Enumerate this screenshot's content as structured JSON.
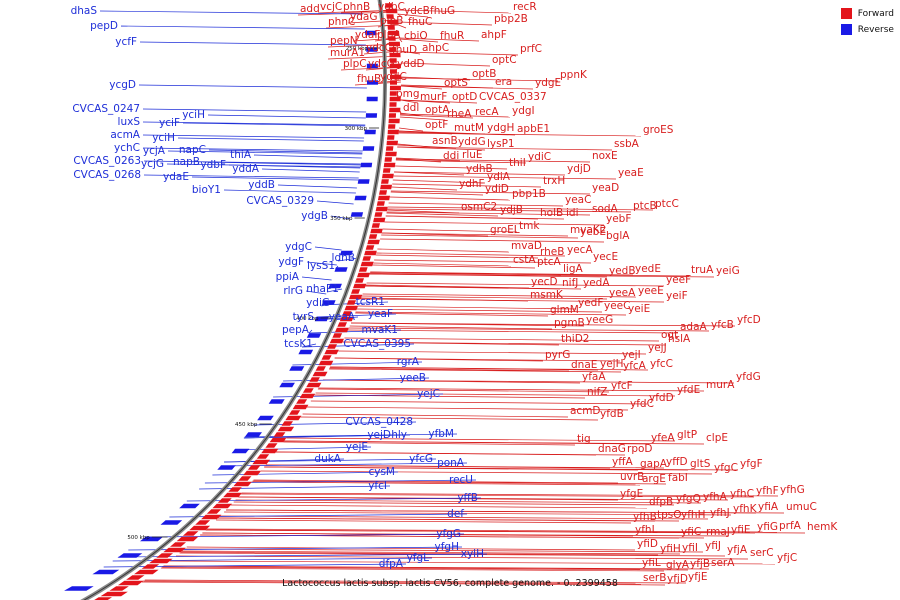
{
  "colors": {
    "forward": "#e3141b",
    "reverse": "#1a1ae6",
    "backbone": "#8a8a8a",
    "label_forward": "#d81e1e",
    "label_reverse": "#1e2ed8"
  },
  "legend": {
    "forward_label": "Forward",
    "reverse_label": "Reverse"
  },
  "caption": "Lactococcus lactis subsp. lactis CV56, complete genome. - 0..2399458",
  "scale_ticks": [
    "250 kbp",
    "300 kbp",
    "350 kbp",
    "400 kbp",
    "450 kbp",
    "500 kbp"
  ],
  "forward_labels": [
    [
      "add",
      300,
      12
    ],
    [
      "vcjC",
      320,
      10
    ],
    [
      "phnB",
      343,
      10
    ],
    [
      "ydbC",
      378,
      10
    ],
    [
      "recR",
      513,
      10
    ],
    [
      "ydcB",
      404,
      14
    ],
    [
      "fhuG",
      430,
      14
    ],
    [
      "pbp2B",
      494,
      22
    ],
    [
      "phnC",
      328,
      25
    ],
    [
      "ydaG",
      350,
      20
    ],
    [
      "plpB",
      380,
      24
    ],
    [
      "fhuC",
      408,
      25
    ],
    [
      "fhuR",
      440,
      39
    ],
    [
      "ahpF",
      481,
      38
    ],
    [
      "pepN",
      330,
      44
    ],
    [
      "ydaF",
      355,
      38
    ],
    [
      "plpA",
      377,
      38
    ],
    [
      "cbiO",
      404,
      39
    ],
    [
      "prfC",
      520,
      52
    ],
    [
      "murA1",
      330,
      56
    ],
    [
      "ydcC",
      366,
      51
    ],
    [
      "fhuD",
      392,
      53
    ],
    [
      "ahpC",
      422,
      51
    ],
    [
      "optC",
      492,
      63
    ],
    [
      "ppnK",
      560,
      78
    ],
    [
      "plpC",
      343,
      67
    ],
    [
      "ydcG",
      368,
      67
    ],
    [
      "yddD",
      397,
      67
    ],
    [
      "fhuB",
      357,
      82
    ],
    [
      "yddC",
      380,
      80
    ],
    [
      "optS",
      444,
      86
    ],
    [
      "optB",
      472,
      77
    ],
    [
      "era",
      495,
      85
    ],
    [
      "ydgE",
      535,
      86
    ],
    [
      "pmg",
      396,
      97
    ],
    [
      "murF",
      420,
      100
    ],
    [
      "optD",
      452,
      100
    ],
    [
      "CVCAS_0337",
      479,
      100
    ],
    [
      "ddl",
      403,
      111
    ],
    [
      "optA",
      425,
      113
    ],
    [
      "rheA",
      447,
      117
    ],
    [
      "recA",
      475,
      115
    ],
    [
      "ydgI",
      512,
      114
    ],
    [
      "optF",
      425,
      128
    ],
    [
      "mutM",
      454,
      131
    ],
    [
      "ydgH",
      487,
      131
    ],
    [
      "apbE1",
      517,
      132
    ],
    [
      "asnB",
      432,
      144
    ],
    [
      "yddG",
      458,
      145
    ],
    [
      "groES",
      643,
      133
    ],
    [
      "ssbA",
      614,
      147
    ],
    [
      "ddi",
      443,
      159
    ],
    [
      "rluE",
      462,
      158
    ],
    [
      "lysP1",
      487,
      147
    ],
    [
      "noxE",
      592,
      159
    ],
    [
      "ydhB",
      466,
      172
    ],
    [
      "thiI",
      509,
      166
    ],
    [
      "ydiC",
      528,
      160
    ],
    [
      "ydjD",
      567,
      172
    ],
    [
      "yeaE",
      618,
      176
    ],
    [
      "ydhF",
      459,
      187
    ],
    [
      "ydiA",
      487,
      180
    ],
    [
      "trxH",
      543,
      184
    ],
    [
      "ydiD",
      485,
      192
    ],
    [
      "pbp1B",
      512,
      197
    ],
    [
      "yeaD",
      592,
      191
    ],
    [
      "osmC2",
      461,
      210
    ],
    [
      "ydjB",
      500,
      213
    ],
    [
      "holB",
      540,
      216
    ],
    [
      "idi",
      566,
      216
    ],
    [
      "sodA",
      592,
      212
    ],
    [
      "ptcB",
      633,
      209
    ],
    [
      "ptcC",
      655,
      207
    ],
    [
      "yeaC",
      565,
      203
    ],
    [
      "tmk",
      519,
      229
    ],
    [
      "groEL",
      490,
      233
    ],
    [
      "mvaK2",
      570,
      233
    ],
    [
      "yebF",
      606,
      222
    ],
    [
      "yebE",
      580,
      235
    ],
    [
      "bglA",
      606,
      239
    ],
    [
      "mvaD",
      511,
      249
    ],
    [
      "rheB",
      540,
      255
    ],
    [
      "yecA",
      567,
      253
    ],
    [
      "cstA",
      513,
      263
    ],
    [
      "ptcA",
      537,
      265
    ],
    [
      "ligA",
      563,
      272
    ],
    [
      "yecE",
      593,
      260
    ],
    [
      "yecD",
      531,
      285
    ],
    [
      "nifJ",
      562,
      286
    ],
    [
      "yedA",
      583,
      286
    ],
    [
      "yedB",
      609,
      274
    ],
    [
      "yedE",
      635,
      272
    ],
    [
      "msmK",
      530,
      298
    ],
    [
      "yeeA",
      609,
      296
    ],
    [
      "yeeE",
      638,
      294
    ],
    [
      "yeeF",
      666,
      283
    ],
    [
      "truA",
      691,
      273
    ],
    [
      "yeiG",
      716,
      274
    ],
    [
      "glmM",
      550,
      313
    ],
    [
      "yedF",
      578,
      306
    ],
    [
      "yeeC",
      604,
      309
    ],
    [
      "yeiF",
      666,
      299
    ],
    [
      "yeeG",
      586,
      323
    ],
    [
      "yeiE",
      628,
      312
    ],
    [
      "pgmB",
      554,
      326
    ],
    [
      "thiD2",
      561,
      342
    ],
    [
      "adaA",
      680,
      330
    ],
    [
      "yfcB",
      711,
      328
    ],
    [
      "yfcD",
      737,
      323
    ],
    [
      "ogt",
      661,
      338
    ],
    [
      "yejI",
      622,
      358
    ],
    [
      "yejJ",
      648,
      351
    ],
    [
      "hslA",
      668,
      342
    ],
    [
      "dnaE",
      571,
      368
    ],
    [
      "yejH",
      600,
      367
    ],
    [
      "yfcA",
      623,
      369
    ],
    [
      "yfcC",
      650,
      367
    ],
    [
      "pyrG",
      545,
      358
    ],
    [
      "yfaA",
      582,
      380
    ],
    [
      "yfcF",
      611,
      389
    ],
    [
      "nifZ",
      587,
      395
    ],
    [
      "yfdD",
      649,
      401
    ],
    [
      "yfdE",
      677,
      393
    ],
    [
      "murA",
      706,
      388
    ],
    [
      "yfdG",
      736,
      380
    ],
    [
      "acmD",
      570,
      414
    ],
    [
      "yfdB",
      600,
      417
    ],
    [
      "yfdC",
      630,
      407
    ],
    [
      "tig",
      577,
      442
    ],
    [
      "yfeA",
      651,
      441
    ],
    [
      "gltP",
      677,
      438
    ],
    [
      "clpE",
      706,
      441
    ],
    [
      "dnaG",
      598,
      452
    ],
    [
      "rpoD",
      627,
      452
    ],
    [
      "yffA",
      612,
      465
    ],
    [
      "gapA",
      640,
      467
    ],
    [
      "yffD",
      666,
      465
    ],
    [
      "gltS",
      690,
      467
    ],
    [
      "yfgC",
      714,
      471
    ],
    [
      "yfgF",
      740,
      467
    ],
    [
      "uvrB",
      620,
      480
    ],
    [
      "argE",
      642,
      482
    ],
    [
      "fabI",
      668,
      481
    ],
    [
      "yfgE",
      620,
      497
    ],
    [
      "dfpB",
      649,
      505
    ],
    [
      "yfgQ",
      676,
      502
    ],
    [
      "yfhA",
      703,
      500
    ],
    [
      "yfhC",
      730,
      497
    ],
    [
      "yfhF",
      756,
      494
    ],
    [
      "yfhG",
      780,
      493
    ],
    [
      "yfhB",
      633,
      520
    ],
    [
      "tpsO",
      657,
      518
    ],
    [
      "yfhH",
      681,
      518
    ],
    [
      "yfhJ",
      710,
      516
    ],
    [
      "yfhK",
      733,
      512
    ],
    [
      "yfiA",
      758,
      510
    ],
    [
      "umuC",
      786,
      510
    ],
    [
      "yfhL",
      635,
      533
    ],
    [
      "yfiC",
      681,
      535
    ],
    [
      "rmaJ",
      706,
      535
    ],
    [
      "yfiE",
      731,
      533
    ],
    [
      "yfiG",
      757,
      530
    ],
    [
      "prfA",
      779,
      529
    ],
    [
      "hemK",
      807,
      530
    ],
    [
      "yfiD",
      637,
      547
    ],
    [
      "yfiH",
      660,
      552
    ],
    [
      "yfiI",
      682,
      551
    ],
    [
      "yfiJ",
      705,
      549
    ],
    [
      "yfjA",
      727,
      553
    ],
    [
      "serC",
      750,
      556
    ],
    [
      "yfiL",
      642,
      566
    ],
    [
      "glyA",
      666,
      568
    ],
    [
      "yfjB",
      690,
      567
    ],
    [
      "serA",
      711,
      566
    ],
    [
      "yfjC",
      777,
      561
    ],
    [
      "serB",
      643,
      581
    ],
    [
      "yfjD",
      667,
      582
    ],
    [
      "yfjE",
      688,
      580
    ]
  ],
  "reverse_labels": [
    [
      "dhaS",
      97,
      14
    ],
    [
      "pepD",
      118,
      29
    ],
    [
      "ycfF",
      137,
      45
    ],
    [
      "ycgD",
      136,
      88
    ],
    [
      "CVCAS_0247",
      140,
      112
    ],
    [
      "luxS",
      140,
      125
    ],
    [
      "yciF",
      180,
      126
    ],
    [
      "yciH",
      205,
      118
    ],
    [
      "acmA",
      140,
      138
    ],
    [
      "yciH",
      175,
      141
    ],
    [
      "ychC",
      140,
      151
    ],
    [
      "ycjA",
      165,
      154
    ],
    [
      "napC",
      206,
      153
    ],
    [
      "CVCAS_0263",
      141,
      164
    ],
    [
      "ycjG",
      164,
      167
    ],
    [
      "napB",
      200,
      165
    ],
    [
      "ydbF",
      226,
      168
    ],
    [
      "thiA",
      251,
      158
    ],
    [
      "CVCAS_0268",
      141,
      178
    ],
    [
      "ydaE",
      189,
      180
    ],
    [
      "yddA",
      259,
      172
    ],
    [
      "bioY1",
      221,
      193
    ],
    [
      "yddB",
      275,
      188
    ],
    [
      "CVCAS_0329",
      314,
      204
    ],
    [
      "ydgB",
      328,
      219
    ],
    [
      "ydgC",
      312,
      250
    ],
    [
      "ldhB",
      355,
      261
    ],
    [
      "ydgF",
      304,
      265
    ],
    [
      "lysS1",
      335,
      269
    ],
    [
      "ppiA",
      299,
      280
    ],
    [
      "rlrG",
      303,
      294
    ],
    [
      "nhaP1",
      339,
      292
    ],
    [
      "ydiG",
      330,
      306
    ],
    [
      "tcsR1",
      385,
      305
    ],
    [
      "tyrS",
      314,
      320
    ],
    [
      "yeaA",
      355,
      320
    ],
    [
      "yeaF",
      393,
      317
    ],
    [
      "pepA",
      309,
      333
    ],
    [
      "mvaK1",
      398,
      333
    ],
    [
      "tcsK1",
      313,
      347
    ],
    [
      "CVCAS_0395",
      411,
      347
    ],
    [
      "rgrA",
      419,
      365
    ],
    [
      "yeeB",
      426,
      381
    ],
    [
      "yejC",
      440,
      397
    ],
    [
      "CVCAS_0428",
      413,
      425
    ],
    [
      "yejD",
      391,
      438
    ],
    [
      "hly",
      407,
      438
    ],
    [
      "yfbM",
      454,
      437
    ],
    [
      "yejE",
      368,
      450
    ],
    [
      "yfcG",
      433,
      462
    ],
    [
      "dukA",
      341,
      462
    ],
    [
      "ponA",
      464,
      466
    ],
    [
      "cysM",
      395,
      475
    ],
    [
      "yfcI",
      387,
      489
    ],
    [
      "recU",
      473,
      483
    ],
    [
      "yffB",
      478,
      501
    ],
    [
      "def",
      464,
      517
    ],
    [
      "yfgG",
      461,
      537
    ],
    [
      "yfgH",
      459,
      550
    ],
    [
      "xylH",
      484,
      557
    ],
    [
      "yfgL",
      429,
      561
    ],
    [
      "dfpA",
      403,
      567
    ]
  ]
}
